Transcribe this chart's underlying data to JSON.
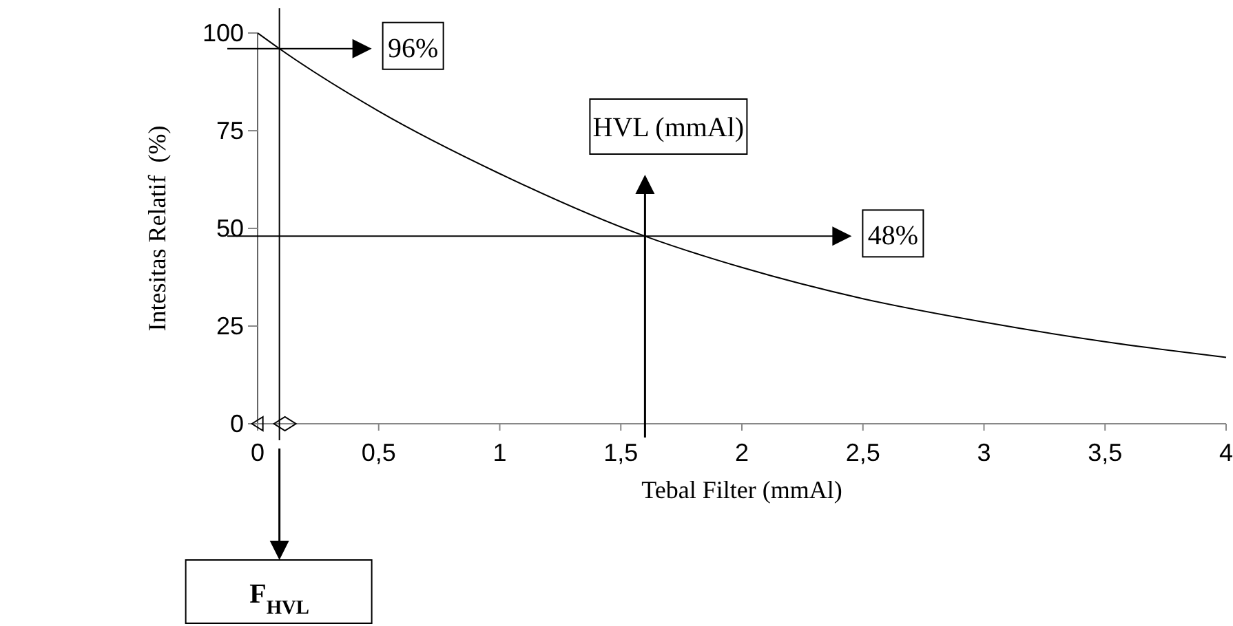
{
  "chart_data": {
    "type": "line",
    "xlabel": "Tebal Filter (mmAl)",
    "ylabel": "Intesitas Relatif  (%)",
    "x": [
      0,
      0.09,
      0.5,
      1,
      1.6,
      2,
      2.5,
      3,
      3.5,
      4
    ],
    "series": [
      {
        "color": "#000000",
        "values": [
          100,
          96,
          80,
          64,
          48,
          40,
          32,
          26,
          21,
          17
        ]
      }
    ],
    "xlim": [
      0,
      4
    ],
    "xticks": [
      0,
      {
        "value": 0.5,
        "label": "0,5"
      },
      1,
      {
        "value": 1.5,
        "label": "1,5"
      },
      2,
      {
        "value": 2.5,
        "label": "2,5"
      },
      3,
      {
        "value": 3.5,
        "label": "3,5"
      },
      4
    ],
    "ylim": [
      0,
      100
    ],
    "yticks": [
      0,
      25,
      50,
      75,
      100
    ],
    "grid": false,
    "marker": "none",
    "line_style": "solid",
    "ref_lines": [
      {
        "axis": "y",
        "value": 96,
        "label": "96%"
      },
      {
        "axis": "y",
        "value": 48,
        "label": "48%"
      },
      {
        "axis": "x",
        "value": 1.6,
        "label": "HVL (mmAl)"
      },
      {
        "axis": "x",
        "value": 0.09,
        "label": "F$_{HVL}$"
      }
    ]
  }
}
